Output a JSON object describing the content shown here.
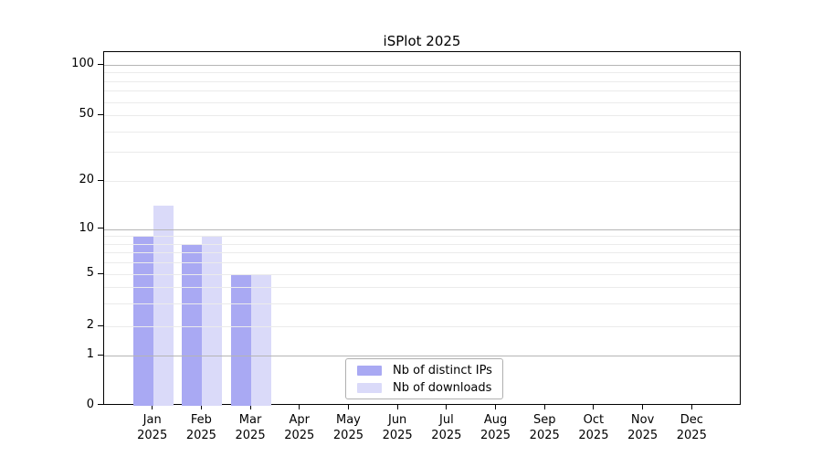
{
  "chart_data": {
    "type": "bar",
    "title": "iSPlot 2025",
    "x_categories": [
      "Jan",
      "Feb",
      "Mar",
      "Apr",
      "May",
      "Jun",
      "Jul",
      "Aug",
      "Sep",
      "Oct",
      "Nov",
      "Dec"
    ],
    "x_year": "2025",
    "series": [
      {
        "name": "Nb of distinct IPs",
        "color": "#a9a9f3",
        "values": [
          9,
          8,
          5,
          0,
          0,
          0,
          0,
          0,
          0,
          0,
          0,
          0
        ]
      },
      {
        "name": "Nb of downloads",
        "color": "#dadaf9",
        "values": [
          14,
          9,
          5,
          0,
          0,
          0,
          0,
          0,
          0,
          0,
          0,
          0
        ]
      }
    ],
    "y_axis": {
      "scale": "symlog",
      "range": [
        0,
        100
      ],
      "ticks": [
        0,
        1,
        2,
        5,
        10,
        20,
        50,
        100
      ],
      "major_gridlines": [
        1,
        10,
        100
      ],
      "minor_gridlines": [
        2,
        3,
        4,
        5,
        6,
        7,
        8,
        9,
        20,
        30,
        40,
        50,
        60,
        70,
        80,
        90
      ]
    },
    "legend_position": "bottom-center",
    "grid": true,
    "colors": {
      "background": "#ffffff",
      "spine": "#000000",
      "major_grid": "#b5b5b5",
      "minor_grid": "#ebebeb"
    }
  }
}
